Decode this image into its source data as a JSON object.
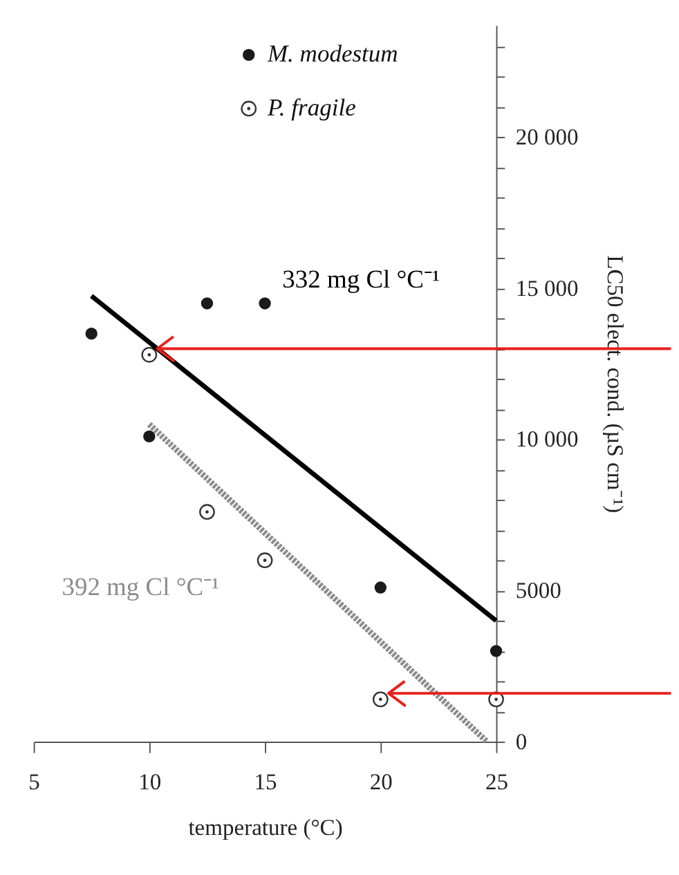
{
  "chart_data": {
    "type": "scatter",
    "xlabel": "temperature (°C)",
    "ylabel": "LC50 elect. cond. (µS cm⁻¹)",
    "xlim": [
      5,
      25
    ],
    "xticks": [
      5,
      10,
      15,
      20,
      25
    ],
    "ylim": [
      0,
      23700
    ],
    "yticks": [
      0,
      {
        "value": 1000,
        "label": null
      },
      {
        "value": 2000,
        "label": null
      },
      {
        "value": 3000,
        "label": null
      },
      {
        "value": 4000,
        "label": null
      },
      {
        "value": 5000,
        "label": "5000"
      },
      {
        "value": 6000,
        "label": null
      },
      {
        "value": 7000,
        "label": null
      },
      {
        "value": 8000,
        "label": null
      },
      {
        "value": 9000,
        "label": null
      },
      {
        "value": 10000,
        "label": "10 000"
      },
      {
        "value": 11000,
        "label": null
      },
      {
        "value": 12000,
        "label": null
      },
      {
        "value": 13000,
        "label": null
      },
      {
        "value": 14000,
        "label": null
      },
      {
        "value": 15000,
        "label": "15 000"
      },
      {
        "value": 16000,
        "label": null
      },
      {
        "value": 17000,
        "label": null
      },
      {
        "value": 18000,
        "label": null
      },
      {
        "value": 19000,
        "label": null
      },
      {
        "value": 20000,
        "label": "20 000"
      },
      {
        "value": 21000,
        "label": null
      },
      {
        "value": 22000,
        "label": null
      },
      {
        "value": 23000,
        "label": null
      }
    ],
    "grid": false,
    "legend": "top",
    "series": [
      {
        "name": "M. modestum",
        "marker": "circle",
        "color": "#1a1a1a",
        "x": [
          7.5,
          10,
          12.5,
          15,
          20,
          25
        ],
        "values": [
          13500,
          10100,
          14500,
          14500,
          5100,
          3000
        ]
      },
      {
        "name": "P. fragile",
        "marker": "circle",
        "color": "#333333",
        "x": [
          10,
          12.5,
          15,
          20,
          25
        ],
        "values": [
          12800,
          7600,
          6000,
          1400,
          1400
        ]
      },
      {
        "name": "332 mg Cl °C⁻¹",
        "type": "line",
        "color": "#000000",
        "line_style": "solid",
        "x": [
          7.5,
          25
        ],
        "values": [
          14750,
          4000
        ]
      },
      {
        "name": "392 mg Cl °C⁻¹",
        "type": "line",
        "color": "#8c8c8c",
        "line_style": "dotted",
        "x": [
          10,
          24.6
        ],
        "values": [
          10500,
          0
        ]
      }
    ],
    "ref_lines": [
      {
        "axis": "y",
        "value": 13000,
        "color": "#e8201c"
      },
      {
        "axis": "y",
        "value": 1600,
        "color": "#e8201c"
      }
    ]
  }
}
